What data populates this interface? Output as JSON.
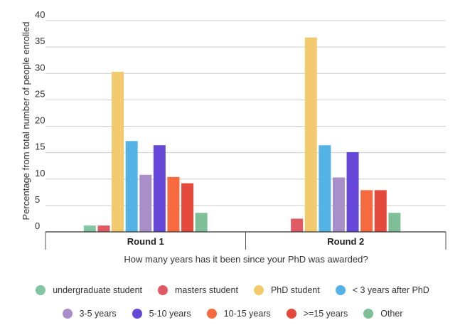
{
  "chart_data": {
    "type": "bar",
    "categories": [
      "Round 1",
      "Round 2"
    ],
    "xlabel": "How many years has it been since your PhD was awarded?",
    "ylabel": "Percentage from total number of people enrolled",
    "ylim": [
      0,
      40
    ],
    "yticks": [
      0,
      5,
      10,
      15,
      20,
      25,
      30,
      35,
      40
    ],
    "grid": true,
    "legend_position": "bottom",
    "series": [
      {
        "name": "undergraduate student",
        "color": "#81c5a4",
        "values": [
          1.2,
          null
        ]
      },
      {
        "name": "masters student",
        "color": "#e05a64",
        "values": [
          1.2,
          2.5
        ]
      },
      {
        "name": "PhD student",
        "color": "#f2c96d",
        "values": [
          30.3,
          36.8
        ]
      },
      {
        "name": "< 3 years after PhD",
        "color": "#53b3e4",
        "values": [
          17.2,
          16.4
        ]
      },
      {
        "name": "3-5 years",
        "color": "#a98fca",
        "values": [
          10.8,
          10.3
        ]
      },
      {
        "name": "5-10 years",
        "color": "#6648d8",
        "values": [
          16.4,
          15.1
        ]
      },
      {
        "name": "10-15 years",
        "color": "#f7693f",
        "values": [
          10.4,
          7.9
        ]
      },
      {
        "name": ">=15 years",
        "color": "#e4493b",
        "values": [
          9.2,
          7.9
        ]
      },
      {
        "name": "Other",
        "color": "#7fbf98",
        "values": [
          3.6,
          3.6
        ]
      }
    ]
  }
}
